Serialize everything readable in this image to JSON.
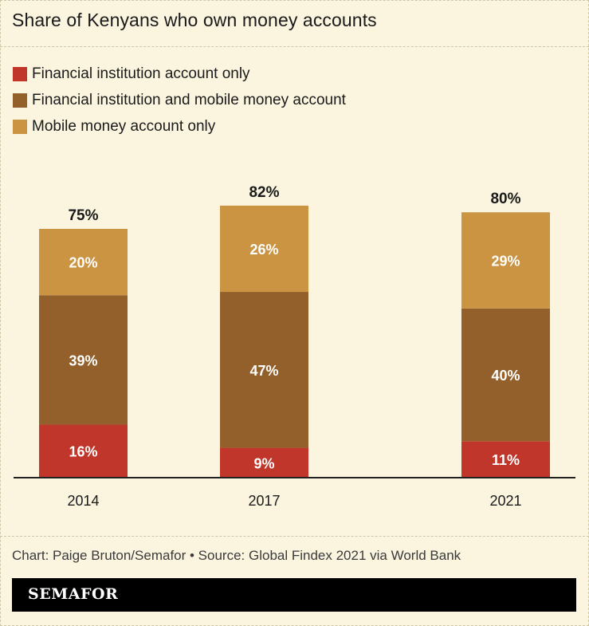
{
  "title": "Share of Kenyans who own money accounts",
  "colors": {
    "fi_only": "#c0362b",
    "fi_and_mobile": "#93602b",
    "mobile_only": "#cb9443",
    "axis": "#222222",
    "segment_label": "#ffffff",
    "total_label": "#1a1a1a"
  },
  "chart_data": {
    "type": "bar",
    "stacked": true,
    "categories": [
      "2014",
      "2017",
      "2021"
    ],
    "series": [
      {
        "name": "Financial institution account only",
        "values": [
          16,
          9,
          11
        ],
        "labels": [
          "16%",
          "9%",
          "11%"
        ]
      },
      {
        "name": "Financial institution and mobile money account",
        "values": [
          39,
          47,
          40
        ],
        "labels": [
          "39%",
          "47%",
          "40%"
        ]
      },
      {
        "name": "Mobile money account only",
        "values": [
          20,
          26,
          29
        ],
        "labels": [
          "20%",
          "26%",
          "29%"
        ]
      }
    ],
    "totals": [
      75,
      82,
      80
    ],
    "total_labels": [
      "75%",
      "82%",
      "80%"
    ],
    "ylim": [
      0,
      100
    ],
    "legend": "top-left",
    "grid": false
  },
  "source": "Chart: Paige Bruton/Semafor • Source: Global Findex 2021 via World Bank",
  "brand": "SEMAFOR"
}
